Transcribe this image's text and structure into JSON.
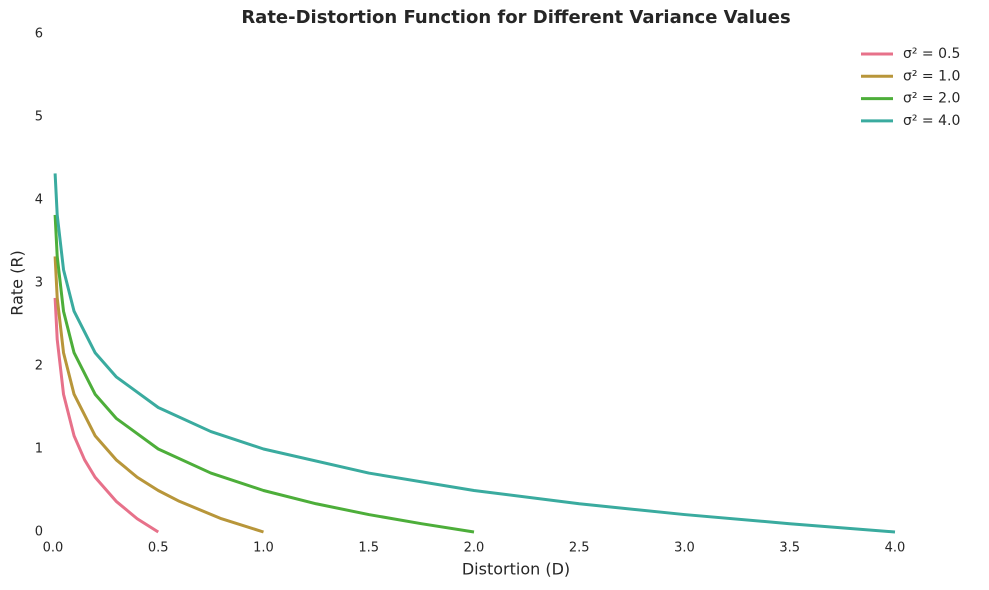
{
  "chart_data": {
    "type": "line",
    "title": "Rate-Distortion Function for Different Variance Values",
    "x_label": "Distortion (D)",
    "y_label": "Rate (R)",
    "xlim": [
      0,
      4
    ],
    "ylim": [
      0,
      6
    ],
    "xticks": [
      {
        "value": 0,
        "label": "0.0"
      },
      0.5,
      {
        "value": 1,
        "label": "1.0"
      },
      1.5,
      {
        "value": 2,
        "label": "2.0"
      },
      2.5,
      {
        "value": 3,
        "label": "3.0"
      },
      3.5,
      {
        "value": 4,
        "label": "4.0"
      }
    ],
    "yticks": [
      0,
      1,
      2,
      3,
      4,
      5,
      6
    ],
    "grid": false,
    "legend": "upper right",
    "series": [
      {
        "name": "σ² = 0.5",
        "color": "#e7718a",
        "x": [
          0.01,
          0.02,
          0.05,
          0.1,
          0.15,
          0.2,
          0.3,
          0.4,
          0.5
        ],
        "values": [
          2.82,
          2.32,
          1.66,
          1.16,
          0.87,
          0.66,
          0.37,
          0.16,
          0
        ]
      },
      {
        "name": "σ² = 1.0",
        "color": "#b8963a",
        "x": [
          0.01,
          0.02,
          0.05,
          0.1,
          0.2,
          0.3,
          0.4,
          0.5,
          0.6,
          0.8,
          1.0
        ],
        "values": [
          3.32,
          2.82,
          2.16,
          1.66,
          1.16,
          0.87,
          0.66,
          0.5,
          0.37,
          0.16,
          0
        ]
      },
      {
        "name": "σ² = 2.0",
        "color": "#4dae3a",
        "x": [
          0.01,
          0.02,
          0.05,
          0.1,
          0.2,
          0.3,
          0.5,
          0.75,
          1.0,
          1.25,
          1.5,
          1.75,
          2.0
        ],
        "values": [
          3.82,
          3.32,
          2.66,
          2.16,
          1.66,
          1.37,
          1.0,
          0.71,
          0.5,
          0.34,
          0.21,
          0.1,
          0
        ]
      },
      {
        "name": "σ² = 4.0",
        "color": "#3aab9f",
        "x": [
          0.01,
          0.02,
          0.05,
          0.1,
          0.2,
          0.3,
          0.5,
          0.75,
          1.0,
          1.5,
          2.0,
          2.5,
          3.0,
          3.5,
          4.0
        ],
        "values": [
          4.32,
          3.82,
          3.16,
          2.66,
          2.16,
          1.87,
          1.5,
          1.21,
          1.0,
          0.71,
          0.5,
          0.34,
          0.21,
          0.1,
          0
        ]
      }
    ]
  }
}
